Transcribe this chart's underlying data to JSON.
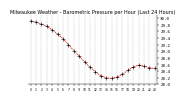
{
  "title": "Milwaukee Weather - Barometric Pressure per Hour (Last 24 Hours)",
  "hours": [
    0,
    1,
    2,
    3,
    4,
    5,
    6,
    7,
    8,
    9,
    10,
    11,
    12,
    13,
    14,
    15,
    16,
    17,
    18,
    19,
    20,
    21,
    22,
    23
  ],
  "pressure": [
    29.92,
    29.88,
    29.82,
    29.75,
    29.65,
    29.52,
    29.38,
    29.2,
    29.02,
    28.85,
    28.68,
    28.52,
    28.38,
    28.26,
    28.2,
    28.18,
    28.22,
    28.3,
    28.42,
    28.52,
    28.58,
    28.55,
    28.5,
    28.48
  ],
  "line_color": "#cc0000",
  "marker_color": "#000000",
  "grid_color": "#aaaaaa",
  "bg_color": "#ffffff",
  "ylim": [
    28.0,
    30.1
  ],
  "ytick_values": [
    28.0,
    28.2,
    28.4,
    28.6,
    28.8,
    29.0,
    29.2,
    29.4,
    29.6,
    29.8,
    30.0
  ],
  "title_fontsize": 3.5,
  "tick_fontsize": 3.0,
  "line_width": 0.5,
  "marker_size": 1.2
}
